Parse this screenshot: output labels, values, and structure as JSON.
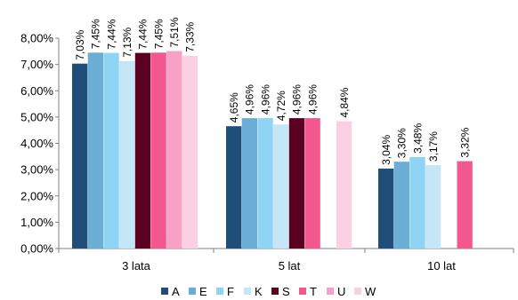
{
  "chart_data": {
    "type": "bar",
    "categories": [
      "3 lata",
      "5 lat",
      "10 lat"
    ],
    "ylim": [
      0,
      8
    ],
    "ytick_values": [
      0,
      1,
      2,
      3,
      4,
      5,
      6,
      7,
      8
    ],
    "ytick_labels": [
      "0,00%",
      "1,00%",
      "2,00%",
      "3,00%",
      "4,00%",
      "5,00%",
      "6,00%",
      "7,00%",
      "8,00%"
    ],
    "legend_position": "bottom",
    "grid": false,
    "series": [
      {
        "name": "A",
        "color": "#1f4e79",
        "values": [
          7.03,
          4.65,
          3.04
        ],
        "labels": [
          "7,03%",
          "4,65%",
          "3,04%"
        ]
      },
      {
        "name": "E",
        "color": "#6aaed6",
        "values": [
          7.45,
          4.96,
          3.3
        ],
        "labels": [
          "7,45%",
          "4,96%",
          "3,30%"
        ]
      },
      {
        "name": "F",
        "color": "#8fd3f5",
        "values": [
          7.44,
          4.96,
          3.48
        ],
        "labels": [
          "7,44%",
          "4,96%",
          "3,48%"
        ]
      },
      {
        "name": "K",
        "color": "#c5e6f7",
        "values": [
          7.13,
          4.72,
          3.17
        ],
        "labels": [
          "7,13%",
          "4,72%",
          "3,17%"
        ]
      },
      {
        "name": "S",
        "color": "#5a0020",
        "values": [
          7.44,
          4.96,
          null
        ],
        "labels": [
          "7,44%",
          "4,96%",
          null
        ]
      },
      {
        "name": "T",
        "color": "#f2588e",
        "values": [
          7.45,
          4.96,
          3.32
        ],
        "labels": [
          "7,45%",
          "4,96%",
          "3,32%"
        ]
      },
      {
        "name": "U",
        "color": "#f7a1c6",
        "values": [
          7.51,
          null,
          null
        ],
        "labels": [
          "7,51%",
          null,
          null
        ]
      },
      {
        "name": "W",
        "color": "#fbd0e2",
        "values": [
          7.33,
          4.84,
          null
        ],
        "labels": [
          "7,33%",
          "4,84%",
          null
        ]
      }
    ]
  }
}
